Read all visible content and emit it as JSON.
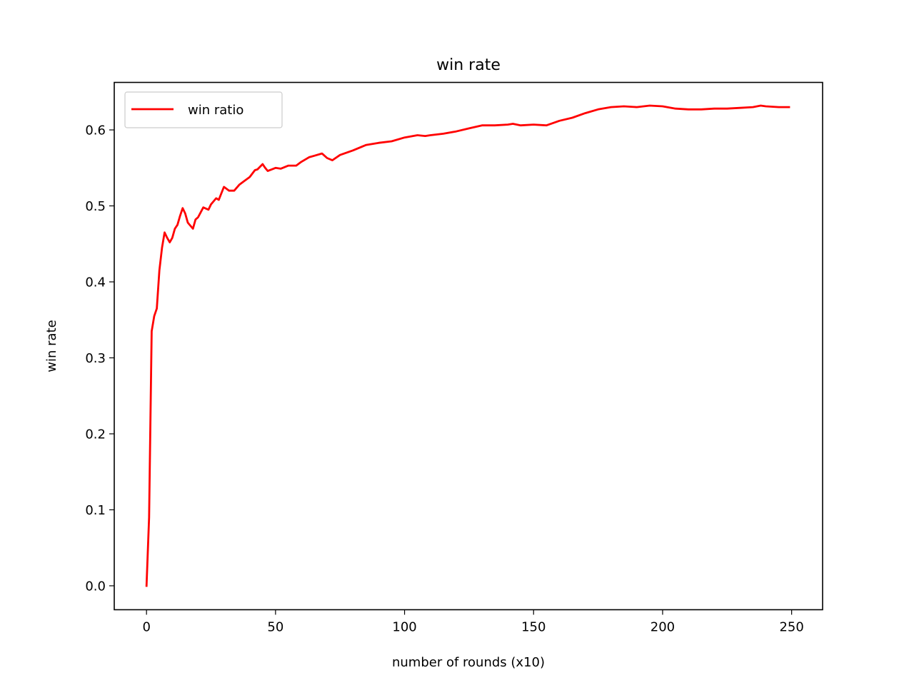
{
  "chart_data": {
    "type": "line",
    "title": "win rate",
    "xlabel": "number of rounds (x10)",
    "ylabel": "win rate",
    "xlim": [
      -12.5,
      262
    ],
    "ylim": [
      -0.0315,
      0.6625
    ],
    "xticks": [
      0,
      50,
      100,
      150,
      200,
      250
    ],
    "yticks": [
      0.0,
      0.1,
      0.2,
      0.3,
      0.4,
      0.5,
      0.6
    ],
    "xtick_labels": [
      "0",
      "50",
      "100",
      "150",
      "200",
      "250"
    ],
    "ytick_labels": [
      "0.0",
      "0.1",
      "0.2",
      "0.3",
      "0.4",
      "0.5",
      "0.6"
    ],
    "grid": false,
    "legend_position": "upper-left",
    "series": [
      {
        "name": "win ratio",
        "color": "#ff0000",
        "x": [
          0,
          1,
          2,
          3,
          4,
          5,
          6,
          7,
          8,
          9,
          10,
          11,
          12,
          13,
          14,
          15,
          16,
          18,
          19,
          20,
          22,
          24,
          25,
          27,
          28,
          30,
          32,
          34,
          36,
          38,
          40,
          42,
          43,
          45,
          46,
          47,
          50,
          52,
          55,
          58,
          60,
          63,
          65,
          68,
          70,
          72,
          75,
          80,
          85,
          90,
          95,
          100,
          105,
          108,
          110,
          115,
          120,
          125,
          130,
          135,
          140,
          142,
          145,
          150,
          155,
          160,
          165,
          170,
          175,
          180,
          185,
          190,
          195,
          200,
          205,
          210,
          215,
          220,
          225,
          230,
          235,
          238,
          240,
          245,
          249
        ],
        "y": [
          0.0,
          0.09,
          0.335,
          0.355,
          0.365,
          0.415,
          0.445,
          0.465,
          0.458,
          0.452,
          0.458,
          0.47,
          0.475,
          0.487,
          0.497,
          0.49,
          0.478,
          0.47,
          0.482,
          0.485,
          0.498,
          0.495,
          0.502,
          0.51,
          0.508,
          0.525,
          0.52,
          0.52,
          0.528,
          0.533,
          0.538,
          0.547,
          0.548,
          0.555,
          0.55,
          0.546,
          0.55,
          0.549,
          0.553,
          0.553,
          0.558,
          0.564,
          0.566,
          0.569,
          0.563,
          0.56,
          0.567,
          0.573,
          0.58,
          0.583,
          0.585,
          0.59,
          0.593,
          0.592,
          0.593,
          0.595,
          0.598,
          0.602,
          0.606,
          0.606,
          0.607,
          0.608,
          0.606,
          0.607,
          0.606,
          0.612,
          0.616,
          0.622,
          0.627,
          0.63,
          0.631,
          0.63,
          0.632,
          0.631,
          0.628,
          0.627,
          0.627,
          0.628,
          0.628,
          0.629,
          0.63,
          0.632,
          0.631,
          0.63,
          0.63
        ]
      }
    ]
  }
}
